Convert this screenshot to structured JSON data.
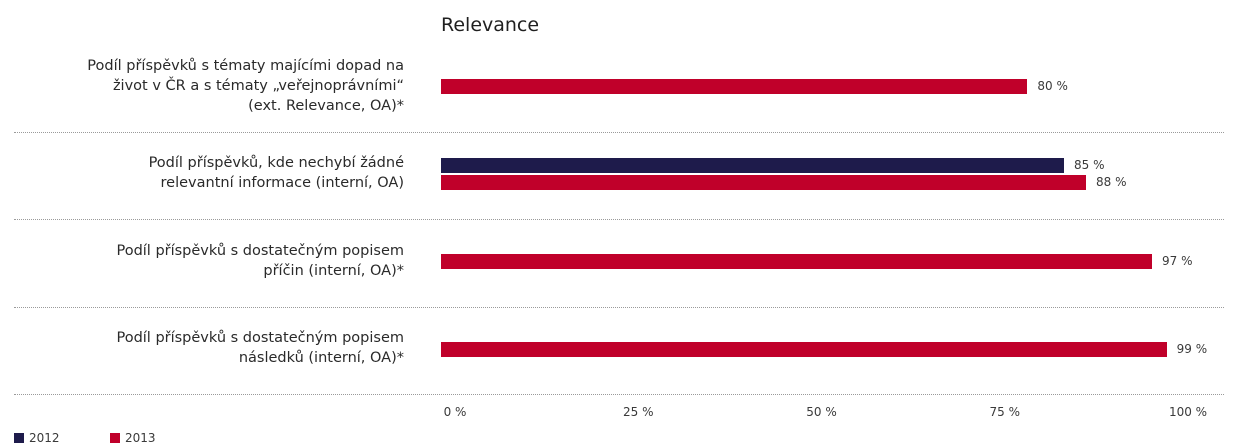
{
  "chart_data": {
    "type": "bar",
    "orientation": "horizontal",
    "title": "Relevance",
    "categories": [
      [
        "Podíl příspěvků s tématy majícími dopad na",
        "život v ČR a s tématy „veřejnoprávními“",
        "(ext. Relevance, OA)*"
      ],
      [
        "Podíl příspěvků, kde nechybí žádné",
        "relevantní informace (interní, OA)"
      ],
      [
        "Podíl příspěvků s dostatečným popisem",
        "příčin (interní, OA)*"
      ],
      [
        "Podíl příspěvků s dostatečným popisem",
        "následků (interní, OA)*"
      ]
    ],
    "series": [
      {
        "name": "2012",
        "color": "#1e1b4b",
        "values": [
          null,
          85,
          null,
          null
        ],
        "labels": [
          "",
          "85 %",
          "",
          ""
        ]
      },
      {
        "name": "2013",
        "color": "#c0002a",
        "values": [
          80,
          88,
          97,
          99
        ],
        "labels": [
          "80 %",
          "88 %",
          "97 %",
          "99 %"
        ]
      }
    ],
    "xlim": [
      0,
      100
    ],
    "xticks": [
      "0 %",
      "25 %",
      "50 %",
      "75 %",
      "100 %"
    ],
    "legend": "bottom-left",
    "grid": false
  }
}
